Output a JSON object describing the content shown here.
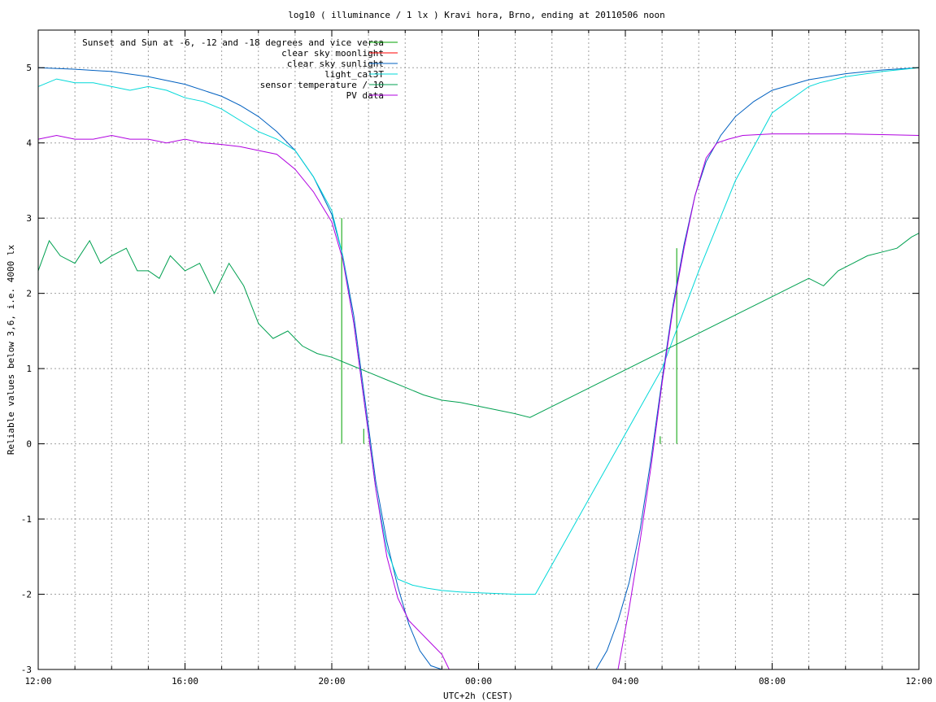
{
  "chart_data": {
    "type": "line",
    "title": "log10 ( illuminance / 1 lx ) Kravi hora, Brno, ending at 20110506 noon",
    "xlabel": "UTC+2h (CEST)",
    "ylabel": "Reliable values below 3,6, i.e. 4000 lx",
    "xlim": [
      12,
      36
    ],
    "ylim": [
      -3,
      5.5
    ],
    "x_ticks": [
      {
        "x": 12,
        "label": "12:00"
      },
      {
        "x": 16,
        "label": "16:00"
      },
      {
        "x": 20,
        "label": "20:00"
      },
      {
        "x": 24,
        "label": "00:00"
      },
      {
        "x": 28,
        "label": "04:00"
      },
      {
        "x": 32,
        "label": "08:00"
      },
      {
        "x": 36,
        "label": "12:00"
      }
    ],
    "x_minor_step": 1,
    "y_ticks": [
      {
        "y": -3,
        "label": "-3"
      },
      {
        "y": -2,
        "label": "-2"
      },
      {
        "y": -1,
        "label": "-1"
      },
      {
        "y": 0,
        "label": "0"
      },
      {
        "y": 1,
        "label": "1"
      },
      {
        "y": 2,
        "label": "2"
      },
      {
        "y": 3,
        "label": "3"
      },
      {
        "y": 4,
        "label": "4"
      },
      {
        "y": 5,
        "label": "5"
      }
    ],
    "grid": true,
    "legend_position": "top-left",
    "series": [
      {
        "name": "Sunset and Sun at -6, -12 and -18 degrees and vice versa",
        "color": "#00a000",
        "style": "impulses",
        "x": [
          20.27,
          20.87,
          21.67,
          22.6,
          27.07,
          28.03,
          28.95,
          29.4
        ],
        "values": [
          3.0,
          0.2,
          0,
          0,
          0,
          0,
          0.1,
          2.6
        ]
      },
      {
        "name": "clear sky moonlight",
        "color": "#ff0000",
        "x": [],
        "values": []
      },
      {
        "name": "clear sky sunlight",
        "color": "#0060c0",
        "x": [
          12.0,
          13.0,
          14.0,
          15.0,
          16.0,
          17.0,
          17.5,
          18.0,
          18.5,
          19.0,
          19.5,
          20.0,
          20.3,
          20.6,
          20.9,
          21.2,
          21.5,
          21.8,
          22.1,
          22.4,
          22.7,
          23.0,
          27.2,
          27.5,
          27.8,
          28.1,
          28.4,
          28.7,
          29.0,
          29.3,
          29.6,
          29.9,
          30.2,
          30.6,
          31.0,
          31.5,
          32.0,
          33.0,
          34.0,
          35.0,
          36.0
        ],
        "values": [
          5.0,
          4.98,
          4.95,
          4.88,
          4.78,
          4.62,
          4.5,
          4.35,
          4.15,
          3.9,
          3.55,
          3.05,
          2.5,
          1.7,
          0.6,
          -0.5,
          -1.3,
          -1.9,
          -2.4,
          -2.75,
          -2.95,
          -3.05,
          -3.05,
          -2.75,
          -2.35,
          -1.85,
          -1.15,
          -0.2,
          0.85,
          1.85,
          2.65,
          3.3,
          3.75,
          4.1,
          4.35,
          4.55,
          4.7,
          4.84,
          4.92,
          4.97,
          5.0
        ]
      },
      {
        "name": "light_cal3T",
        "color": "#00d8d8",
        "x": [
          12.0,
          12.5,
          13.0,
          13.5,
          14.0,
          14.5,
          15.0,
          15.5,
          16.0,
          16.5,
          17.0,
          17.5,
          18.0,
          18.5,
          19.0,
          19.5,
          20.0,
          20.3,
          20.6,
          20.9,
          21.2,
          21.5,
          21.8,
          22.2,
          22.6,
          23.0,
          23.5,
          24.0,
          24.5,
          25.0,
          25.4,
          25.55,
          29.0,
          30.0,
          31.0,
          32.0,
          33.0,
          33.3,
          34.0,
          35.0,
          36.0
        ],
        "values": [
          4.75,
          4.85,
          4.8,
          4.8,
          4.75,
          4.7,
          4.75,
          4.7,
          4.6,
          4.55,
          4.45,
          4.3,
          4.15,
          4.05,
          3.9,
          3.55,
          3.1,
          2.5,
          1.6,
          0.5,
          -0.6,
          -1.4,
          -1.8,
          -1.88,
          -1.92,
          -1.95,
          -1.97,
          -1.98,
          -1.99,
          -2.0,
          -2.0,
          -2.0,
          1.0,
          2.3,
          3.5,
          4.4,
          4.75,
          4.8,
          4.88,
          4.95,
          5.0
        ]
      },
      {
        "name": "sensor temperature / 10",
        "color": "#00a050",
        "x": [
          12.0,
          12.3,
          12.6,
          13.0,
          13.4,
          13.7,
          14.0,
          14.4,
          14.7,
          15.0,
          15.3,
          15.6,
          16.0,
          16.4,
          16.8,
          17.2,
          17.6,
          18.0,
          18.4,
          18.8,
          19.2,
          19.6,
          20.0,
          20.5,
          21.0,
          21.5,
          22.0,
          22.5,
          23.0,
          23.5,
          24.0,
          24.5,
          25.0,
          25.4,
          33.0,
          33.4,
          33.8,
          34.2,
          34.6,
          35.0,
          35.4,
          35.8,
          36.0
        ],
        "values": [
          2.3,
          2.7,
          2.5,
          2.4,
          2.7,
          2.4,
          2.5,
          2.6,
          2.3,
          2.3,
          2.2,
          2.5,
          2.3,
          2.4,
          2.0,
          2.4,
          2.1,
          1.6,
          1.4,
          1.5,
          1.3,
          1.2,
          1.15,
          1.05,
          0.95,
          0.85,
          0.75,
          0.65,
          0.58,
          0.55,
          0.5,
          0.45,
          0.4,
          0.35,
          2.2,
          2.1,
          2.3,
          2.4,
          2.5,
          2.55,
          2.6,
          2.75,
          2.8
        ]
      },
      {
        "name": "PV data",
        "color": "#b000e0",
        "x": [
          12.0,
          12.5,
          13.0,
          13.5,
          14.0,
          14.5,
          15.0,
          15.5,
          16.0,
          16.5,
          17.0,
          17.5,
          18.0,
          18.5,
          19.0,
          19.5,
          20.0,
          20.3,
          20.6,
          20.9,
          21.2,
          21.5,
          21.8,
          22.1,
          22.4,
          22.7,
          23.0,
          23.2,
          27.8,
          28.1,
          28.4,
          28.7,
          29.0,
          29.3,
          29.6,
          29.9,
          30.2,
          30.5,
          30.8,
          31.2,
          32.0,
          33.0,
          34.0,
          35.0,
          36.0
        ],
        "values": [
          4.05,
          4.1,
          4.05,
          4.05,
          4.1,
          4.05,
          4.05,
          4.0,
          4.05,
          4.0,
          3.98,
          3.95,
          3.9,
          3.85,
          3.65,
          3.35,
          2.95,
          2.45,
          1.6,
          0.5,
          -0.6,
          -1.5,
          -2.05,
          -2.35,
          -2.5,
          -2.65,
          -2.8,
          -3.0,
          -3.0,
          -2.2,
          -1.3,
          -0.3,
          0.8,
          1.8,
          2.6,
          3.3,
          3.8,
          4.0,
          4.05,
          4.1,
          4.12,
          4.12,
          4.12,
          4.11,
          4.1
        ]
      }
    ]
  }
}
